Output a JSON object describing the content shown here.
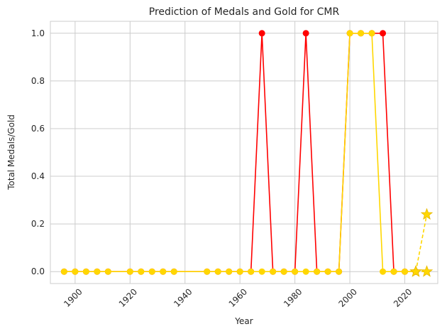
{
  "chart_data": {
    "type": "line",
    "title": "Prediction of Medals and Gold for CMR",
    "xlabel": "Year",
    "ylabel": "Total Medals/Gold",
    "xlim": [
      1891,
      2032
    ],
    "ylim": [
      -0.05,
      1.05
    ],
    "grid": true,
    "x_ticks": [
      1900,
      1920,
      1940,
      1960,
      1980,
      2000,
      2020
    ],
    "y_ticks": [
      0.0,
      0.2,
      0.4,
      0.6,
      0.8,
      1.0
    ],
    "series": [
      {
        "color": "#ff0000",
        "marker": "circle",
        "linestyle": "solid",
        "x": [
          1896,
          1900,
          1904,
          1908,
          1912,
          1920,
          1924,
          1928,
          1932,
          1936,
          1948,
          1952,
          1956,
          1960,
          1964,
          1968,
          1972,
          1976,
          1980,
          1984,
          1988,
          1992,
          1996,
          2000,
          2004,
          2008,
          2012,
          2016,
          2020,
          2024
        ],
        "y": [
          0,
          0,
          0,
          0,
          0,
          0,
          0,
          0,
          0,
          0,
          0,
          0,
          0,
          0,
          0,
          1,
          0,
          0,
          0,
          1,
          0,
          0,
          0,
          1,
          1,
          1,
          1,
          0,
          0,
          0
        ]
      },
      {
        "color": "#ffd700",
        "marker": "circle",
        "linestyle": "solid",
        "x": [
          1896,
          1900,
          1904,
          1908,
          1912,
          1920,
          1924,
          1928,
          1932,
          1936,
          1948,
          1952,
          1956,
          1960,
          1964,
          1968,
          1972,
          1976,
          1980,
          1984,
          1988,
          1992,
          1996,
          2000,
          2004,
          2008,
          2012,
          2016,
          2020,
          2024
        ],
        "y": [
          0,
          0,
          0,
          0,
          0,
          0,
          0,
          0,
          0,
          0,
          0,
          0,
          0,
          0,
          0,
          0,
          0,
          0,
          0,
          0,
          0,
          0,
          0,
          1,
          1,
          1,
          0,
          0,
          0,
          0
        ]
      },
      {
        "color": "#ffd700",
        "marker": "star",
        "linestyle": "dashed",
        "x": [
          2024,
          2028
        ],
        "y": [
          0,
          0.24
        ]
      },
      {
        "color": "#ffd700",
        "marker": "star",
        "linestyle": "dashed",
        "x": [
          2024,
          2028
        ],
        "y": [
          0,
          0
        ]
      }
    ]
  }
}
